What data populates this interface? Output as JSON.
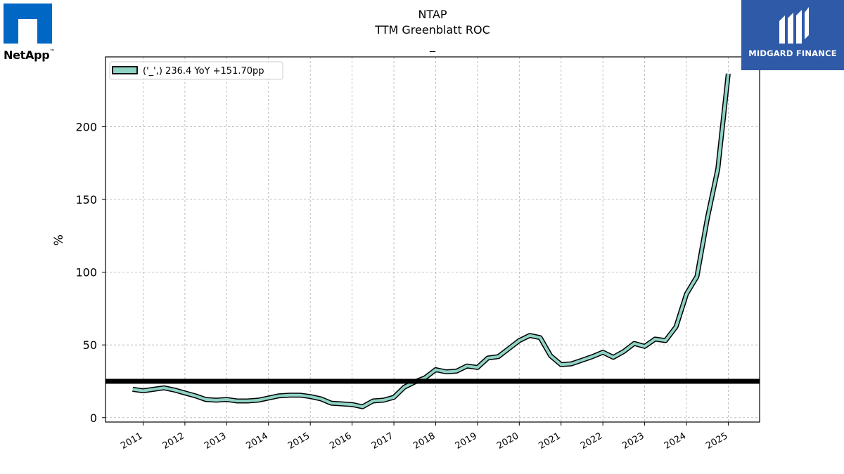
{
  "chart_data": {
    "type": "line",
    "title": "NTAP",
    "subtitle": "TTM Greenblatt ROC",
    "subtitle2": "_",
    "ylabel": "%",
    "xlabel": "",
    "ylim": [
      -3,
      248
    ],
    "xlim": [
      2010.1,
      2025.75
    ],
    "grid": true,
    "yticks": [
      0,
      50,
      100,
      150,
      200
    ],
    "xticks": [
      "2011",
      "2012",
      "2013",
      "2014",
      "2015",
      "2016",
      "2017",
      "2018",
      "2019",
      "2020",
      "2021",
      "2022",
      "2023",
      "2024",
      "2025"
    ],
    "legend": {
      "position": "top-left",
      "label": "('_',) 236.4 YoY +151.70pp"
    },
    "reference_line": {
      "y": 25,
      "color": "#000000"
    },
    "series": [
      {
        "name": "('_',) 236.4 YoY +151.70pp",
        "color": "#8fd3c5",
        "x": [
          2010.75,
          2011.0,
          2011.25,
          2011.5,
          2011.75,
          2012.0,
          2012.25,
          2012.5,
          2012.75,
          2013.0,
          2013.25,
          2013.5,
          2013.75,
          2014.0,
          2014.25,
          2014.5,
          2014.75,
          2015.0,
          2015.25,
          2015.5,
          2015.75,
          2016.0,
          2016.25,
          2016.5,
          2016.75,
          2017.0,
          2017.25,
          2017.5,
          2017.75,
          2018.0,
          2018.25,
          2018.5,
          2018.75,
          2019.0,
          2019.25,
          2019.5,
          2019.75,
          2020.0,
          2020.25,
          2020.5,
          2020.75,
          2021.0,
          2021.25,
          2021.5,
          2021.75,
          2022.0,
          2022.25,
          2022.5,
          2022.75,
          2023.0,
          2023.25,
          2023.5,
          2023.75,
          2024.0,
          2024.25,
          2024.5,
          2024.75,
          2025.0
        ],
        "y": [
          19.5,
          18.5,
          19.5,
          20.5,
          19.0,
          17.0,
          15.0,
          12.5,
          12.0,
          12.5,
          11.5,
          11.5,
          12.0,
          13.5,
          15.0,
          15.5,
          15.5,
          14.5,
          13.0,
          10.0,
          9.5,
          9.0,
          7.5,
          11.5,
          12.0,
          14.0,
          21.0,
          24.5,
          27.5,
          33.0,
          31.5,
          32.0,
          35.5,
          34.5,
          41.0,
          42.0,
          47.5,
          53.0,
          56.5,
          55.0,
          42.5,
          36.5,
          37.0,
          39.5,
          42.0,
          45.0,
          41.5,
          45.5,
          51.0,
          49.0,
          54.0,
          53.0,
          62.5,
          85.0,
          97.0,
          137.0,
          171.0,
          236.4
        ]
      }
    ]
  },
  "logos": {
    "left_name": "NetApp",
    "left_tm": "™",
    "right_name": "MIDGARD FINANCE"
  }
}
